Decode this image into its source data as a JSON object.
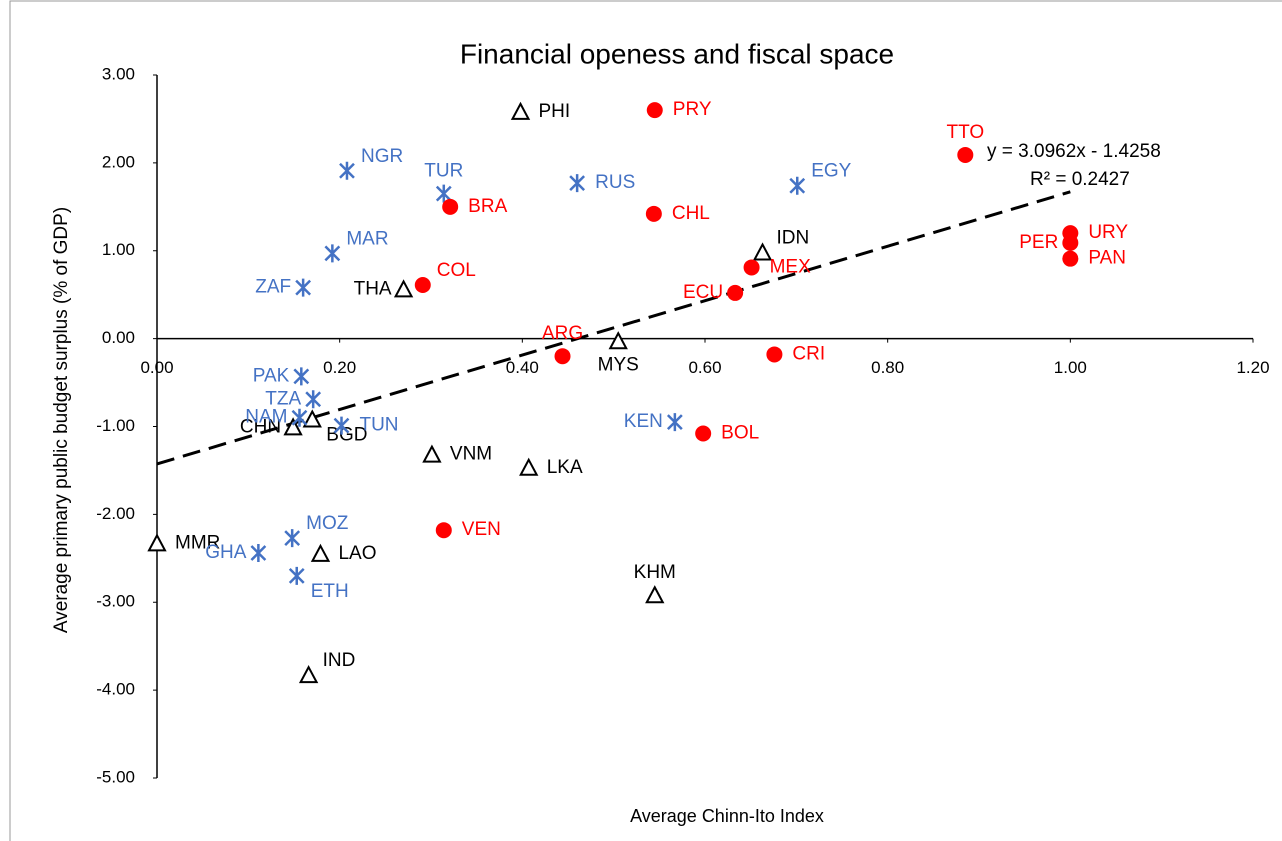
{
  "chart_data": {
    "type": "scatter",
    "title": "Financial openess and fiscal space",
    "x_label": "Average Chinn-Ito Index",
    "y_label": "Average primary public budget surplus (% of GDP)",
    "xlim": [
      0,
      1.2
    ],
    "ylim": [
      -5,
      3
    ],
    "xticks": [
      {
        "value": 0,
        "label": "0.00"
      },
      {
        "value": 0.2,
        "label": "0.20"
      },
      {
        "value": 0.4,
        "label": "0.40"
      },
      {
        "value": 0.6,
        "label": "0.60"
      },
      {
        "value": 0.8,
        "label": "0.80"
      },
      {
        "value": 1,
        "label": "1.00"
      },
      {
        "value": 1.2,
        "label": "1.20"
      }
    ],
    "yticks": [
      {
        "value": 3,
        "label": "3.00"
      },
      {
        "value": 2,
        "label": "2.00"
      },
      {
        "value": 1,
        "label": "1.00"
      },
      {
        "value": 0,
        "label": "0.00"
      },
      {
        "value": -1,
        "label": "-1.00"
      },
      {
        "value": -2,
        "label": "-2.00"
      },
      {
        "value": -3,
        "label": "-3.00"
      },
      {
        "value": -4,
        "label": "-4.00"
      },
      {
        "value": -5,
        "label": "-5.00"
      }
    ],
    "grid": false,
    "series": [
      {
        "marker": "triangle",
        "color": "#000000",
        "labels": [
          "PHI",
          "IDN",
          "THA",
          "MYS",
          "CHN",
          "BGD",
          "VNM",
          "LKA",
          "MMR",
          "LAO",
          "KHM",
          "IND"
        ],
        "x": [
          0.398,
          0.663,
          0.27,
          0.505,
          0.149,
          0.17,
          0.301,
          0.407,
          0.0,
          0.179,
          0.545,
          0.166
        ],
        "values": [
          2.58,
          0.98,
          0.56,
          -0.03,
          -1.01,
          -0.92,
          -1.32,
          -1.47,
          -2.33,
          -2.45,
          -2.92,
          -3.83
        ]
      },
      {
        "marker": "asterisk",
        "color": "#4472c4",
        "labels": [
          "NGR",
          "TUR",
          "RUS",
          "EGY",
          "MAR",
          "ZAF",
          "PAK",
          "TZA",
          "NAM",
          "TUN",
          "KEN",
          "MOZ",
          "GHA",
          "ETH"
        ],
        "x": [
          0.208,
          0.314,
          0.46,
          0.701,
          0.192,
          0.16,
          0.158,
          0.171,
          0.156,
          0.202,
          0.567,
          0.148,
          0.111,
          0.153
        ],
        "values": [
          1.91,
          1.65,
          1.77,
          1.74,
          0.97,
          0.58,
          -0.43,
          -0.69,
          -0.9,
          -0.99,
          -0.95,
          -2.27,
          -2.44,
          -2.7
        ]
      },
      {
        "marker": "circle",
        "color": "#ff0000",
        "labels": [
          "PRY",
          "TTO",
          "BRA",
          "CHL",
          "URY",
          "PER",
          "PAN",
          "MEX",
          "COL",
          "ECU",
          "ARG",
          "CRI",
          "BOL",
          "VEN"
        ],
        "x": [
          0.545,
          0.885,
          0.321,
          0.544,
          1.0,
          1.0,
          1.0,
          0.651,
          0.291,
          0.633,
          0.444,
          0.676,
          0.598,
          0.314
        ],
        "values": [
          2.6,
          2.09,
          1.5,
          1.42,
          1.2,
          1.09,
          0.91,
          0.81,
          0.61,
          0.52,
          -0.2,
          -0.18,
          -1.08,
          -2.18
        ]
      }
    ],
    "trendline": {
      "slope": 3.0962,
      "intercept": -1.4258,
      "xrange": [
        0,
        1
      ],
      "equation": "y = 3.0962x - 1.4258",
      "r2": "R² = 0.2427"
    }
  }
}
